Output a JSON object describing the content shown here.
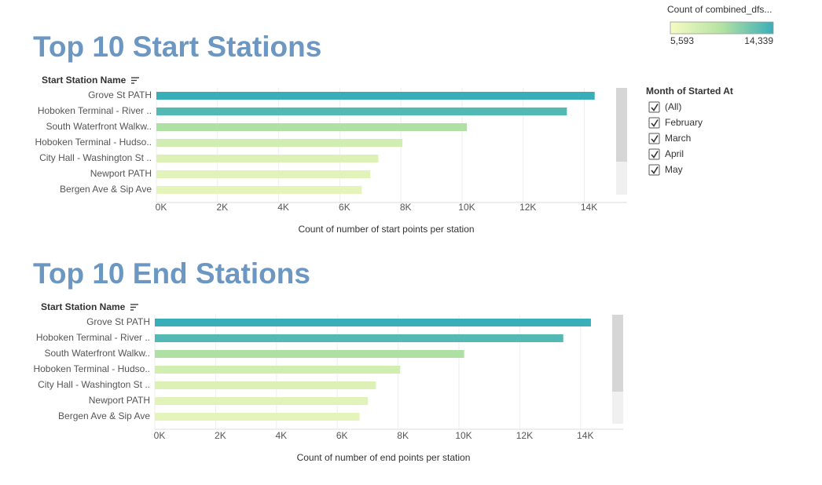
{
  "chart_data": [
    {
      "type": "bar",
      "orientation": "horizontal",
      "title": "Top 10 Start Stations",
      "y_label": "Start Station Name",
      "x_label": "Count of number of start points per station",
      "categories": [
        "Grove St PATH",
        "Hoboken Terminal - River ..",
        "South Waterfront Walkw..",
        "Hoboken Terminal - Hudso..",
        "City Hall - Washington St ..",
        "Newport PATH",
        "Bergen Ave & Sip Ave"
      ],
      "values": [
        14339,
        13430,
        10160,
        8050,
        7260,
        7000,
        6720
      ],
      "xlim": [
        0,
        15400
      ],
      "xticks": [
        {
          "value": 0,
          "label": "0K"
        },
        {
          "value": 2000,
          "label": "2K"
        },
        {
          "value": 4000,
          "label": "4K"
        },
        {
          "value": 6000,
          "label": "6K"
        },
        {
          "value": 8000,
          "label": "8K"
        },
        {
          "value": 10000,
          "label": "10K"
        },
        {
          "value": 12000,
          "label": "12K"
        },
        {
          "value": 14000,
          "label": "14K"
        }
      ],
      "grid": true
    },
    {
      "type": "bar",
      "orientation": "horizontal",
      "title": "Top 10 End Stations",
      "y_label": "Start Station Name",
      "x_label": "Count of number of end points per station",
      "categories": [
        "Grove St PATH",
        "Hoboken Terminal - River ..",
        "South Waterfront Walkw..",
        "Hoboken Terminal - Hudso..",
        "City Hall - Washington St ..",
        "Newport PATH",
        "Bergen Ave & Sip Ave"
      ],
      "values": [
        14339,
        13430,
        10170,
        8070,
        7270,
        7010,
        6730
      ],
      "xlim": [
        0,
        15400
      ],
      "xticks": [
        {
          "value": 0,
          "label": "0K"
        },
        {
          "value": 2000,
          "label": "2K"
        },
        {
          "value": 4000,
          "label": "4K"
        },
        {
          "value": 6000,
          "label": "6K"
        },
        {
          "value": 8000,
          "label": "8K"
        },
        {
          "value": 10000,
          "label": "10K"
        },
        {
          "value": 12000,
          "label": "12K"
        },
        {
          "value": 14000,
          "label": "14K"
        }
      ],
      "grid": true
    }
  ],
  "color_legend": {
    "title": "Count of combined_dfs...",
    "min": {
      "value": 5593,
      "label": "5,593"
    },
    "max": {
      "value": 14339,
      "label": "14,339"
    },
    "colors": [
      "#f6fbc2",
      "#b4e2a3",
      "#3aaeb8"
    ]
  },
  "filter": {
    "title": "Month of Started At",
    "items": [
      "(All)",
      "February",
      "March",
      "April",
      "May"
    ]
  }
}
